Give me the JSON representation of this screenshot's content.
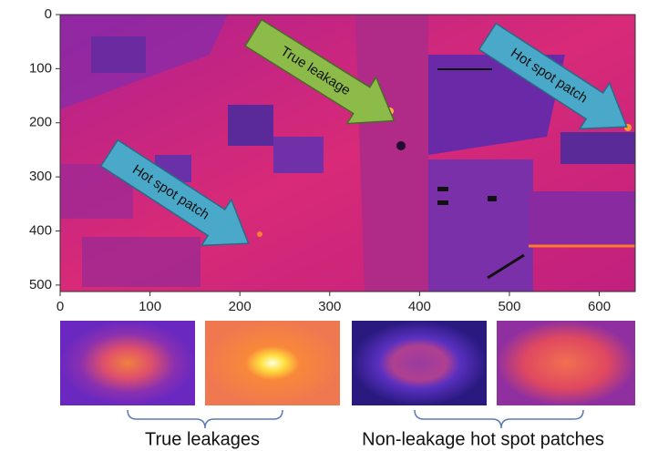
{
  "image_plot": {
    "xlim": [
      0,
      640
    ],
    "ylim": [
      512,
      0
    ],
    "xticks": [
      0,
      100,
      200,
      300,
      400,
      500,
      600
    ],
    "yticks": [
      0,
      100,
      200,
      300,
      400,
      500
    ]
  },
  "annotations": [
    "True leakage",
    "Hot spot patch",
    "Hot spot patch"
  ],
  "captions": [
    "True leakages",
    "Non-leakage hot spot patches"
  ]
}
